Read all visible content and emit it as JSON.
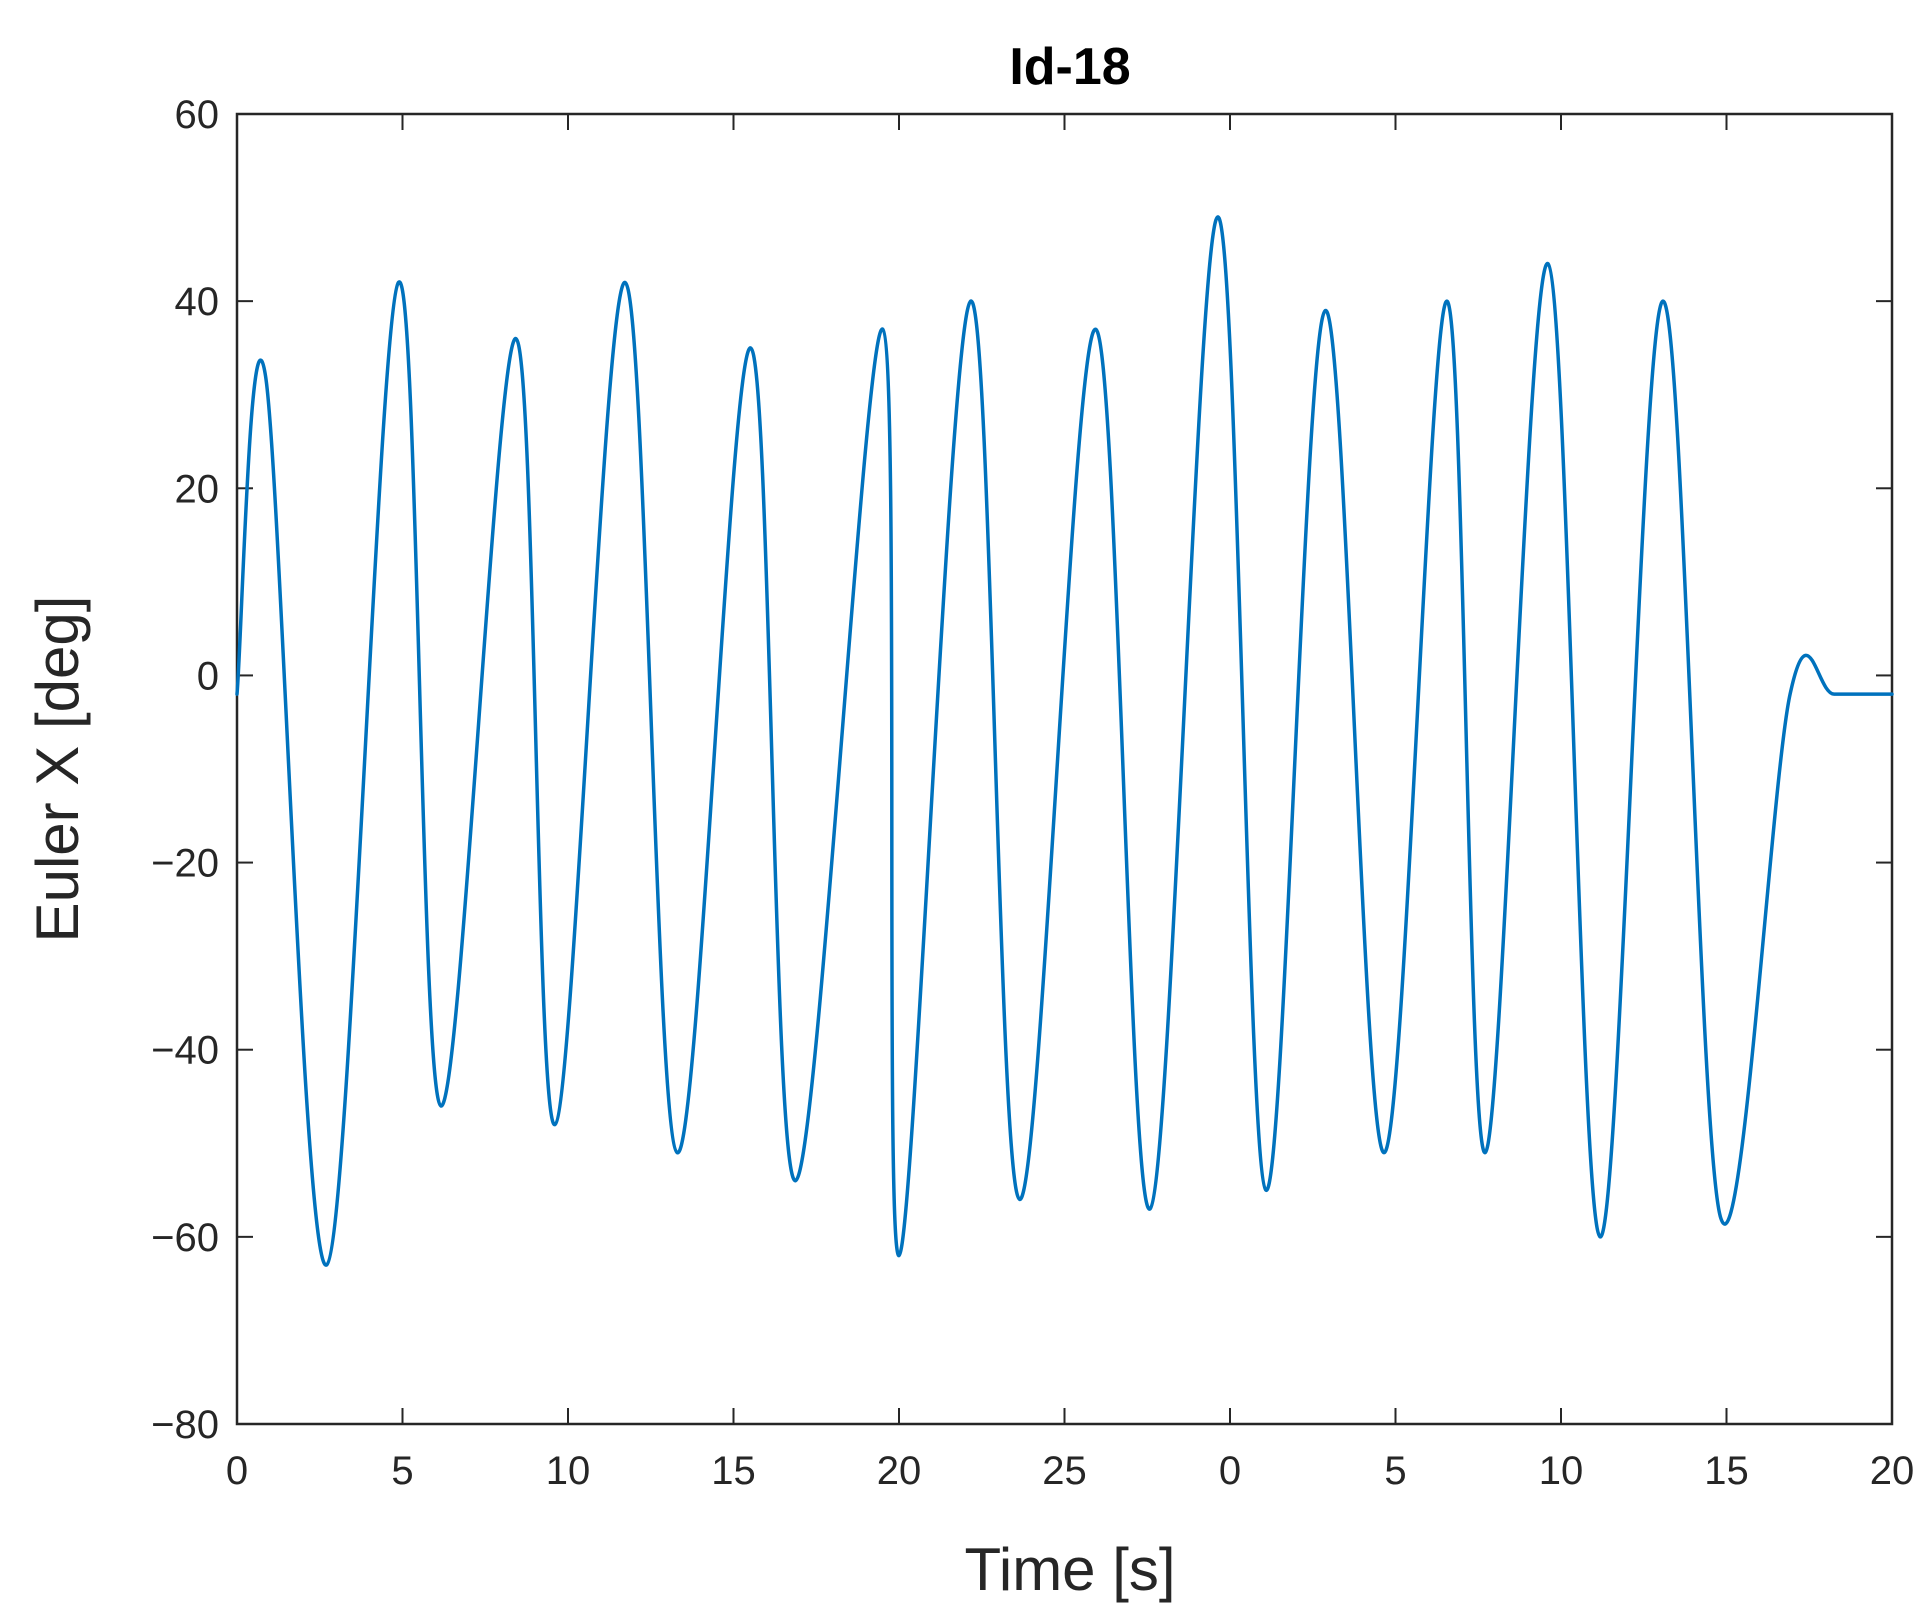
{
  "chart_data": {
    "type": "line",
    "title": "Id-18",
    "xlabel": "Time [s]",
    "ylabel": "Euler X [deg]",
    "xlim": [
      0,
      20.3
    ],
    "ylim": [
      -80,
      60
    ],
    "grid": false,
    "legend": "none",
    "line_color": "#0072BD",
    "xticks": [
      {
        "value": 0,
        "label": "0"
      },
      {
        "value": 2.03,
        "label": "5"
      },
      {
        "value": 4.06,
        "label": "10"
      },
      {
        "value": 6.09,
        "label": "15"
      },
      {
        "value": 8.12,
        "label": "20"
      },
      {
        "value": 10.15,
        "label": "25"
      },
      {
        "value": 12.18,
        "label": "0"
      },
      {
        "value": 14.21,
        "label": "5"
      },
      {
        "value": 16.24,
        "label": "10"
      },
      {
        "value": 18.27,
        "label": "15"
      },
      {
        "value": 20.3,
        "label": "20"
      }
    ],
    "yticks": [
      {
        "value": 60,
        "label": "60"
      },
      {
        "value": 40,
        "label": "40"
      },
      {
        "value": 20,
        "label": "20"
      },
      {
        "value": 0,
        "label": "0"
      },
      {
        "value": -20,
        "label": "−20"
      },
      {
        "value": -40,
        "label": "−40"
      },
      {
        "value": -60,
        "label": "−60"
      },
      {
        "value": -80,
        "label": "−80"
      }
    ],
    "series": [
      {
        "x": [
          0,
          0.35,
          1.1,
          1.98,
          2.5,
          3.42,
          3.9,
          4.76,
          5.4,
          6.3,
          6.85,
          7.92,
          8.12,
          9.0,
          9.6,
          10.53,
          11.2,
          12.03,
          12.62,
          13.35,
          14.07,
          14.84,
          15.31,
          16.08,
          16.72,
          17.49,
          18.2,
          19.05,
          19.59,
          20.3
        ],
        "y": [
          -2,
          32,
          -63,
          42,
          -46,
          36,
          -48,
          42,
          -51,
          35,
          -54,
          37,
          -62,
          40,
          -56,
          37,
          -57,
          49,
          -55,
          39,
          -51,
          40,
          -51,
          44,
          -60,
          40,
          -58,
          -2,
          -2,
          -2
        ]
      }
    ]
  }
}
